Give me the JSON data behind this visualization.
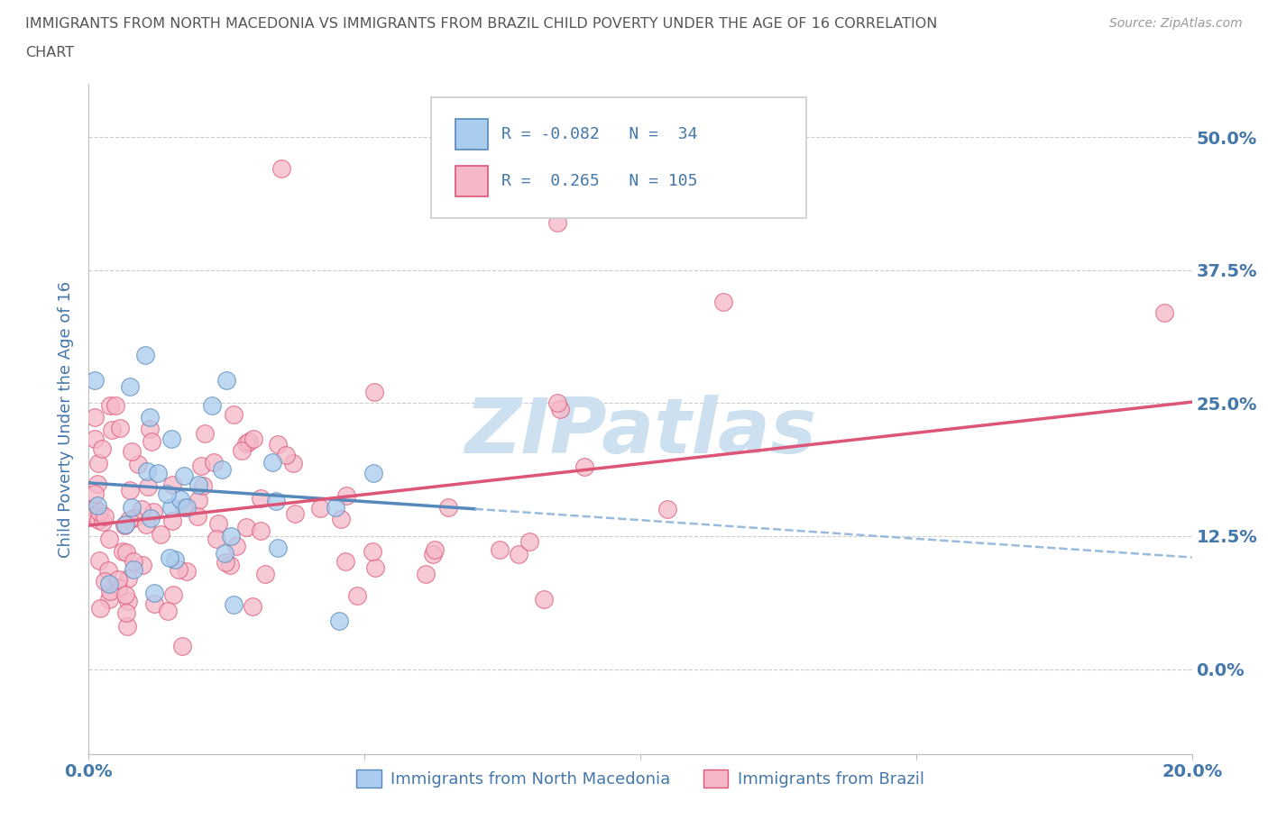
{
  "title_line1": "IMMIGRANTS FROM NORTH MACEDONIA VS IMMIGRANTS FROM BRAZIL CHILD POVERTY UNDER THE AGE OF 16 CORRELATION",
  "title_line2": "CHART",
  "source": "Source: ZipAtlas.com",
  "ylabel": "Child Poverty Under the Age of 16",
  "xlim": [
    0.0,
    0.2
  ],
  "ylim": [
    -0.08,
    0.55
  ],
  "yticks": [
    0.0,
    0.125,
    0.25,
    0.375,
    0.5
  ],
  "ytick_labels": [
    "0.0%",
    "12.5%",
    "25.0%",
    "37.5%",
    "50.0%"
  ],
  "xticks": [
    0.0,
    0.05,
    0.1,
    0.15,
    0.2
  ],
  "xtick_labels": [
    "0.0%",
    "",
    "",
    "",
    "20.0%"
  ],
  "legend_labels": [
    "Immigrants from North Macedonia",
    "Immigrants from Brazil"
  ],
  "R_north_mac": -0.082,
  "N_north_mac": 34,
  "R_brazil": 0.265,
  "N_brazil": 105,
  "scatter_color_mac": "#aaccee",
  "scatter_color_brazil": "#f5b8c8",
  "line_color_mac": "#5588bb",
  "line_color_brazil": "#dd5577",
  "line_color_mac_dashed": "#99bbdd",
  "watermark_color": "#cce0f0",
  "background_color": "#ffffff",
  "grid_color": "#cccccc",
  "title_color": "#555555",
  "axis_label_color": "#4477aa",
  "tick_label_color": "#4477aa",
  "source_color": "#999999",
  "mac_line_x0": 0.0,
  "mac_line_y0": 0.175,
  "mac_line_slope": -0.35,
  "brazil_line_x0": 0.0,
  "brazil_line_y0": 0.135,
  "brazil_line_slope": 0.58
}
